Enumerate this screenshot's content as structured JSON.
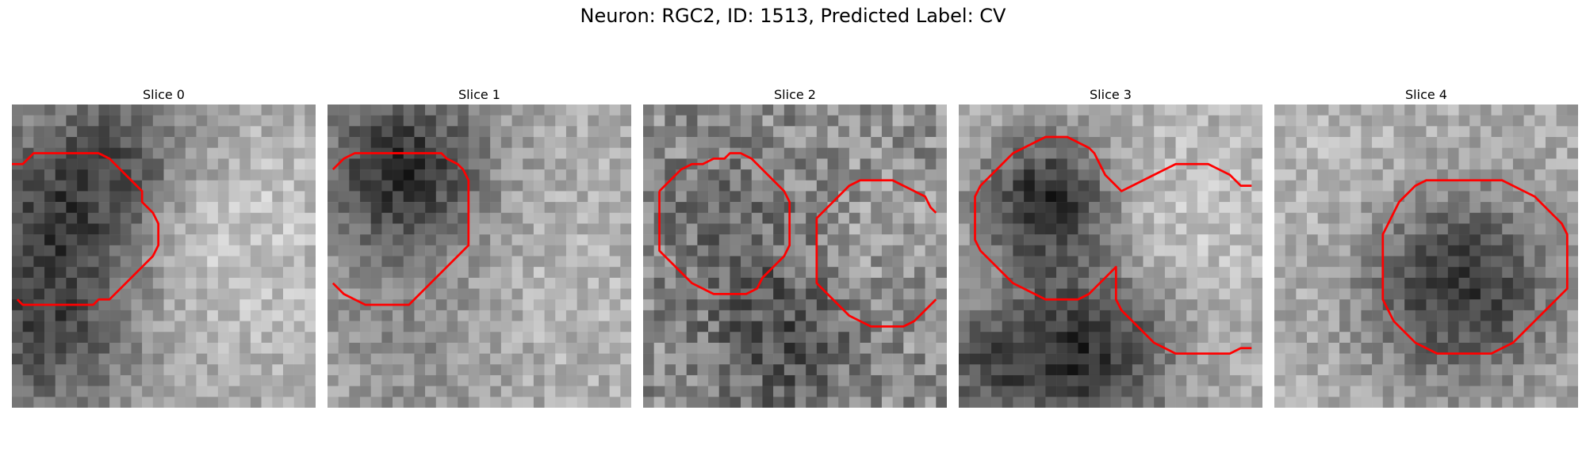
{
  "figure": {
    "title": "Neuron: RGC2, ID: 1513, Predicted Label: CV"
  },
  "panels": [
    {
      "title": "Slice 0",
      "pattern": "dark-left",
      "seed": 11,
      "contours": [
        [
          [
            0.0,
            5.5
          ],
          [
            1.0,
            5.5
          ],
          [
            2.0,
            4.5
          ],
          [
            3.0,
            4.5
          ],
          [
            4.0,
            4.5
          ],
          [
            5.0,
            4.5
          ],
          [
            6.0,
            4.5
          ],
          [
            7.0,
            4.5
          ],
          [
            8.0,
            4.5
          ],
          [
            9.0,
            5.0
          ],
          [
            10.0,
            6.0
          ],
          [
            11.0,
            7.0
          ],
          [
            12.0,
            8.0
          ],
          [
            12.0,
            9.0
          ],
          [
            13.0,
            10.0
          ],
          [
            13.5,
            11.0
          ],
          [
            13.5,
            12.0
          ],
          [
            13.5,
            13.0
          ],
          [
            13.0,
            14.0
          ],
          [
            12.0,
            15.0
          ],
          [
            11.0,
            16.0
          ],
          [
            10.0,
            17.0
          ],
          [
            9.0,
            18.0
          ],
          [
            8.0,
            18.0
          ],
          [
            7.5,
            18.5
          ],
          [
            6.0,
            18.5
          ],
          [
            5.0,
            18.5
          ],
          [
            4.0,
            18.5
          ],
          [
            3.0,
            18.5
          ],
          [
            2.0,
            18.5
          ],
          [
            1.0,
            18.5
          ],
          [
            0.5,
            18.0
          ]
        ]
      ]
    },
    {
      "title": "Slice 1",
      "pattern": "dark-top-left",
      "seed": 23,
      "contours": [
        [
          [
            0.5,
            6.0
          ],
          [
            1.5,
            5.0
          ],
          [
            2.5,
            4.5
          ],
          [
            3.5,
            4.5
          ],
          [
            4.5,
            4.5
          ],
          [
            5.5,
            4.5
          ],
          [
            6.5,
            4.5
          ],
          [
            7.5,
            4.5
          ],
          [
            8.5,
            4.5
          ],
          [
            9.5,
            4.5
          ],
          [
            10.5,
            4.5
          ],
          [
            11.0,
            5.0
          ],
          [
            12.0,
            5.5
          ],
          [
            12.5,
            6.0
          ],
          [
            13.0,
            7.0
          ],
          [
            13.0,
            8.0
          ],
          [
            13.0,
            9.0
          ],
          [
            13.0,
            10.0
          ],
          [
            13.0,
            11.0
          ],
          [
            13.0,
            12.0
          ],
          [
            13.0,
            13.0
          ],
          [
            12.0,
            14.0
          ],
          [
            11.0,
            15.0
          ],
          [
            10.0,
            16.0
          ],
          [
            9.0,
            17.0
          ],
          [
            8.5,
            17.5
          ],
          [
            7.5,
            18.5
          ],
          [
            6.5,
            18.5
          ],
          [
            5.5,
            18.5
          ],
          [
            4.5,
            18.5
          ],
          [
            3.5,
            18.5
          ],
          [
            2.5,
            18.0
          ],
          [
            1.5,
            17.5
          ],
          [
            0.5,
            16.5
          ]
        ]
      ]
    },
    {
      "title": "Slice 2",
      "pattern": "noisy-two-cells",
      "seed": 37,
      "contours": [
        [
          [
            1.5,
            8.0
          ],
          [
            2.5,
            7.0
          ],
          [
            3.5,
            6.0
          ],
          [
            4.5,
            5.5
          ],
          [
            5.5,
            5.5
          ],
          [
            6.5,
            5.0
          ],
          [
            7.5,
            5.0
          ],
          [
            8.0,
            4.5
          ],
          [
            9.0,
            4.5
          ],
          [
            10.0,
            5.0
          ],
          [
            11.0,
            6.0
          ],
          [
            12.0,
            7.0
          ],
          [
            13.0,
            8.0
          ],
          [
            13.5,
            9.0
          ],
          [
            13.5,
            10.0
          ],
          [
            13.5,
            11.0
          ],
          [
            13.5,
            12.0
          ],
          [
            13.5,
            13.0
          ],
          [
            13.0,
            14.0
          ],
          [
            12.0,
            15.0
          ],
          [
            11.0,
            16.0
          ],
          [
            10.5,
            17.0
          ],
          [
            9.5,
            17.5
          ],
          [
            8.5,
            17.5
          ],
          [
            7.5,
            17.5
          ],
          [
            6.5,
            17.5
          ],
          [
            5.5,
            17.0
          ],
          [
            4.5,
            16.5
          ],
          [
            3.5,
            15.5
          ],
          [
            2.5,
            14.5
          ],
          [
            1.5,
            13.5
          ],
          [
            1.5,
            12.5
          ],
          [
            1.5,
            11.5
          ],
          [
            1.5,
            10.5
          ],
          [
            1.5,
            9.5
          ],
          [
            1.5,
            8.0
          ]
        ],
        [
          [
            27.0,
            10.0
          ],
          [
            26.5,
            9.5
          ],
          [
            26.0,
            8.5
          ],
          [
            25.0,
            8.0
          ],
          [
            24.0,
            7.5
          ],
          [
            23.0,
            7.0
          ],
          [
            22.0,
            7.0
          ],
          [
            21.0,
            7.0
          ],
          [
            20.0,
            7.0
          ],
          [
            19.0,
            7.5
          ],
          [
            18.0,
            8.5
          ],
          [
            17.0,
            9.5
          ],
          [
            16.0,
            10.5
          ],
          [
            16.0,
            11.5
          ],
          [
            16.0,
            12.5
          ],
          [
            16.0,
            13.5
          ],
          [
            16.0,
            14.5
          ],
          [
            16.0,
            15.5
          ],
          [
            16.0,
            16.5
          ],
          [
            17.0,
            17.5
          ],
          [
            18.0,
            18.5
          ],
          [
            19.0,
            19.5
          ],
          [
            20.0,
            20.0
          ],
          [
            21.0,
            20.5
          ],
          [
            22.0,
            20.5
          ],
          [
            23.0,
            20.5
          ],
          [
            24.0,
            20.5
          ],
          [
            25.0,
            20.0
          ],
          [
            26.0,
            19.0
          ],
          [
            27.0,
            18.0
          ]
        ]
      ]
    },
    {
      "title": "Slice 3",
      "pattern": "dark-blobs",
      "seed": 51,
      "contours": [
        [
          [
            27.0,
            7.5
          ],
          [
            26.0,
            7.5
          ],
          [
            25.0,
            6.5
          ],
          [
            24.0,
            6.0
          ],
          [
            23.0,
            5.5
          ],
          [
            22.0,
            5.5
          ],
          [
            21.0,
            5.5
          ],
          [
            20.0,
            5.5
          ],
          [
            19.0,
            6.0
          ],
          [
            18.0,
            6.5
          ],
          [
            17.0,
            7.0
          ],
          [
            16.0,
            7.5
          ],
          [
            15.0,
            8.0
          ],
          [
            14.0,
            7.0
          ],
          [
            13.5,
            6.5
          ],
          [
            13.0,
            5.5
          ],
          [
            12.5,
            4.5
          ],
          [
            12.0,
            4.0
          ],
          [
            11.0,
            3.5
          ],
          [
            10.0,
            3.0
          ],
          [
            9.0,
            3.0
          ],
          [
            8.0,
            3.0
          ],
          [
            7.0,
            3.5
          ],
          [
            6.0,
            4.0
          ],
          [
            5.0,
            4.5
          ],
          [
            4.0,
            5.5
          ],
          [
            3.0,
            6.5
          ],
          [
            2.0,
            7.5
          ],
          [
            1.5,
            8.5
          ],
          [
            1.5,
            9.5
          ],
          [
            1.5,
            10.5
          ],
          [
            1.5,
            11.5
          ],
          [
            1.5,
            12.5
          ],
          [
            2.0,
            13.5
          ],
          [
            3.0,
            14.5
          ],
          [
            4.0,
            15.5
          ],
          [
            5.0,
            16.5
          ],
          [
            6.0,
            17.0
          ],
          [
            7.0,
            17.5
          ],
          [
            8.0,
            18.0
          ],
          [
            9.0,
            18.0
          ],
          [
            10.0,
            18.0
          ],
          [
            11.0,
            18.0
          ],
          [
            12.0,
            17.5
          ],
          [
            13.0,
            16.5
          ],
          [
            14.0,
            15.5
          ],
          [
            14.5,
            15.0
          ],
          [
            14.5,
            16.0
          ],
          [
            14.5,
            17.0
          ],
          [
            14.5,
            18.0
          ],
          [
            15.0,
            19.0
          ],
          [
            16.0,
            20.0
          ],
          [
            17.0,
            21.0
          ],
          [
            18.0,
            22.0
          ],
          [
            19.0,
            22.5
          ],
          [
            20.0,
            23.0
          ],
          [
            21.0,
            23.0
          ],
          [
            22.0,
            23.0
          ],
          [
            23.0,
            23.0
          ],
          [
            24.0,
            23.0
          ],
          [
            25.0,
            23.0
          ],
          [
            26.0,
            22.5
          ],
          [
            27.0,
            22.5
          ]
        ]
      ]
    },
    {
      "title": "Slice 4",
      "pattern": "dark-bottom-right",
      "seed": 67,
      "contours": [
        [
          [
            22.0,
            7.5
          ],
          [
            21.0,
            7.0
          ],
          [
            20.0,
            7.0
          ],
          [
            19.0,
            7.0
          ],
          [
            18.0,
            7.0
          ],
          [
            17.0,
            7.0
          ],
          [
            16.0,
            7.0
          ],
          [
            15.0,
            7.0
          ],
          [
            14.0,
            7.0
          ],
          [
            13.0,
            7.5
          ],
          [
            12.0,
            8.5
          ],
          [
            11.5,
            9.0
          ],
          [
            11.0,
            10.0
          ],
          [
            10.5,
            11.0
          ],
          [
            10.0,
            12.0
          ],
          [
            10.0,
            13.0
          ],
          [
            10.0,
            14.0
          ],
          [
            10.0,
            15.0
          ],
          [
            10.0,
            16.0
          ],
          [
            10.0,
            17.0
          ],
          [
            10.0,
            18.0
          ],
          [
            10.5,
            19.0
          ],
          [
            11.0,
            20.0
          ],
          [
            12.0,
            21.0
          ],
          [
            13.0,
            22.0
          ],
          [
            14.0,
            22.5
          ],
          [
            15.0,
            23.0
          ],
          [
            16.0,
            23.0
          ],
          [
            17.0,
            23.0
          ],
          [
            18.0,
            23.0
          ],
          [
            19.0,
            23.0
          ],
          [
            20.0,
            23.0
          ],
          [
            21.0,
            22.5
          ],
          [
            22.0,
            22.0
          ],
          [
            23.0,
            21.0
          ],
          [
            24.0,
            20.0
          ],
          [
            25.0,
            19.0
          ],
          [
            26.0,
            18.0
          ],
          [
            27.0,
            17.0
          ],
          [
            27.0,
            16.0
          ],
          [
            27.0,
            15.0
          ],
          [
            27.0,
            14.0
          ],
          [
            27.0,
            13.0
          ],
          [
            27.0,
            12.0
          ],
          [
            26.5,
            11.0
          ],
          [
            25.5,
            10.0
          ],
          [
            24.5,
            9.0
          ],
          [
            24.0,
            8.5
          ],
          [
            23.0,
            8.0
          ],
          [
            22.0,
            7.5
          ]
        ]
      ]
    }
  ],
  "contour_color": "#ff0000",
  "colormap": "gray"
}
